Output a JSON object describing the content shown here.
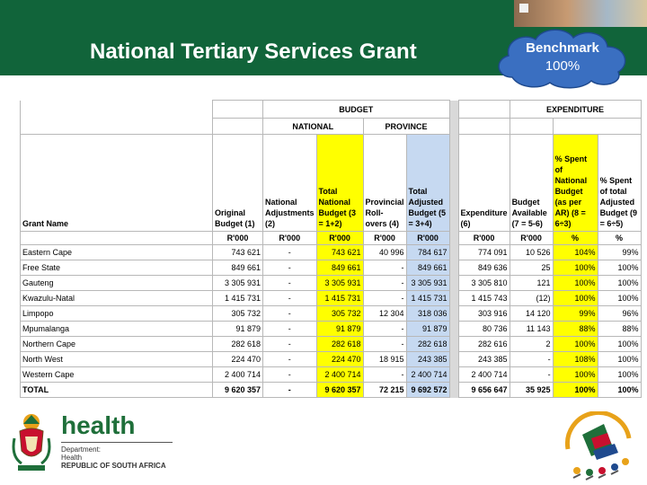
{
  "slide": {
    "title": "National Tertiary Services Grant",
    "benchmark_label": "Benchmark",
    "benchmark_value": "100%"
  },
  "colors": {
    "header_green": "#11643a",
    "highlight_yellow": "#ffff00",
    "highlight_blue": "#c6d9f1",
    "cloud_blue": "#3a6fc1"
  },
  "table": {
    "budget_header": "BUDGET",
    "expenditure_header": "EXPENDITURE",
    "national_header": "NATIONAL",
    "province_header": "PROVINCE",
    "columns": {
      "grant_name": "Grant Name",
      "original_budget": "Original Budget (1)",
      "national_adjustments": "National Adjustments (2)",
      "total_national_budget": "Total National Budget (3 = 1+2)",
      "provincial_rollovers": "Provincial Roll-overs (4)",
      "total_adjusted_budget": "Total Adjusted Budget (5 = 3+4)",
      "expenditure": "Expenditure (6)",
      "budget_available": "Budget Available (7 = 5-6)",
      "pct_national": "% Spent of National Budget (as per AR) (8 = 6÷3)",
      "pct_total": "% Spent of total Adjusted Budget (9 = 6÷5)"
    },
    "units": [
      "R'000",
      "R'000",
      "R'000",
      "R'000",
      "R'000",
      "R'000",
      "R'000",
      "%",
      "%"
    ],
    "rows": [
      {
        "name": "Eastern Cape",
        "c1": "743 621",
        "c2": "-",
        "c3": "743 621",
        "c4": "40 996",
        "c5": "784 617",
        "c6": "774 091",
        "c7": "10 526",
        "c8": "104%",
        "c9": "99%"
      },
      {
        "name": "Free State",
        "c1": "849 661",
        "c2": "-",
        "c3": "849 661",
        "c4": "-",
        "c5": "849 661",
        "c6": "849 636",
        "c7": "25",
        "c8": "100%",
        "c9": "100%"
      },
      {
        "name": "Gauteng",
        "c1": "3 305 931",
        "c2": "-",
        "c3": "3 305 931",
        "c4": "-",
        "c5": "3 305 931",
        "c6": "3 305 810",
        "c7": "121",
        "c8": "100%",
        "c9": "100%"
      },
      {
        "name": "Kwazulu-Natal",
        "c1": "1 415 731",
        "c2": "-",
        "c3": "1 415 731",
        "c4": "-",
        "c5": "1 415 731",
        "c6": "1 415 743",
        "c7": "(12)",
        "c8": "100%",
        "c9": "100%"
      },
      {
        "name": "Limpopo",
        "c1": "305 732",
        "c2": "-",
        "c3": "305 732",
        "c4": "12 304",
        "c5": "318 036",
        "c6": "303 916",
        "c7": "14 120",
        "c8": "99%",
        "c9": "96%"
      },
      {
        "name": "Mpumalanga",
        "c1": "91 879",
        "c2": "-",
        "c3": "91 879",
        "c4": "-",
        "c5": "91 879",
        "c6": "80 736",
        "c7": "11 143",
        "c8": "88%",
        "c9": "88%"
      },
      {
        "name": "Northern Cape",
        "c1": "282 618",
        "c2": "-",
        "c3": "282 618",
        "c4": "-",
        "c5": "282 618",
        "c6": "282 616",
        "c7": "2",
        "c8": "100%",
        "c9": "100%"
      },
      {
        "name": "North West",
        "c1": "224 470",
        "c2": "-",
        "c3": "224 470",
        "c4": "18 915",
        "c5": "243 385",
        "c6": "243 385",
        "c7": "-",
        "c8": "108%",
        "c9": "100%"
      },
      {
        "name": "Western Cape",
        "c1": "2 400 714",
        "c2": "-",
        "c3": "2 400 714",
        "c4": "-",
        "c5": "2 400 714",
        "c6": "2 400 714",
        "c7": "-",
        "c8": "100%",
        "c9": "100%"
      }
    ],
    "total": {
      "name": "TOTAL",
      "c1": "9 620 357",
      "c2": "-",
      "c3": "9 620 357",
      "c4": "72 215",
      "c5": "9 692 572",
      "c6": "9 656 647",
      "c7": "35 925",
      "c8": "100%",
      "c9": "100%"
    }
  },
  "footer": {
    "logo_word": "health",
    "dept_line1": "Department:",
    "dept_line2": "Health",
    "dept_line3": "REPUBLIC OF SOUTH AFRICA"
  }
}
